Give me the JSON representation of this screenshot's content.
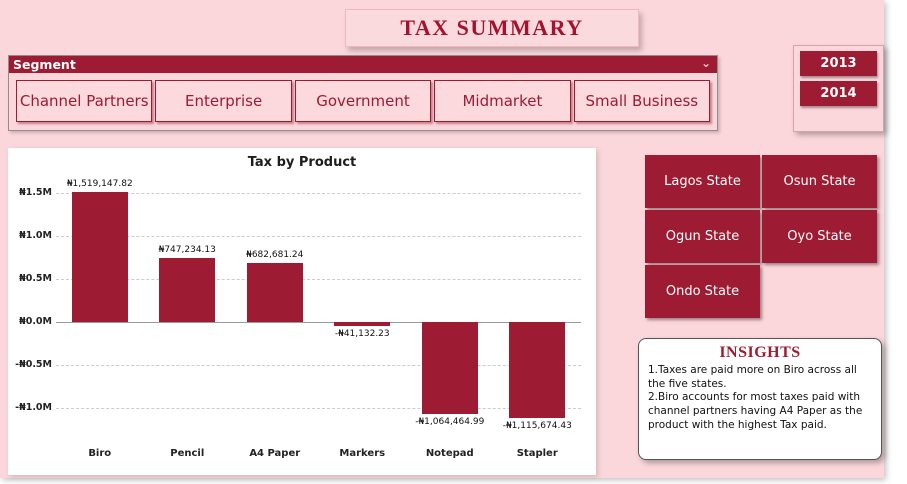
{
  "title": "TAX SUMMARY",
  "colors": {
    "accent": "#9D1B33",
    "page_bg": "#FBD7DB",
    "card_bg": "#FFFFFF",
    "title_color": "#A3122F"
  },
  "segment": {
    "label": "Segment",
    "chevron": "⌄",
    "options": [
      "Channel Partners",
      "Enterprise",
      "Government",
      "Midmarket",
      "Small Business"
    ]
  },
  "years": [
    "2013",
    "2014"
  ],
  "states": [
    "Lagos State",
    "Osun State",
    "Ogun State",
    "Oyo State",
    "Ondo State"
  ],
  "insights": {
    "title": "INSIGHTS",
    "lines": [
      "1.Taxes are paid more on Biro across all the five states.",
      "2.Biro accounts for most taxes paid with channel partners having A4 Paper as the product with the highest Tax paid."
    ]
  },
  "chart_data": {
    "type": "bar",
    "title": "Tax by Product",
    "categories": [
      "Biro",
      "Pencil",
      "A4 Paper",
      "Markers",
      "Notepad",
      "Stapler"
    ],
    "values": [
      1519147.82,
      747234.13,
      682681.24,
      -41132.23,
      -1064464.99,
      -1115674.43
    ],
    "data_labels": [
      "₦1,519,147.82",
      "₦747,234.13",
      "₦682,681.24",
      "-₦41,132.23",
      "-₦1,064,464.99",
      "-₦1,115,674.43"
    ],
    "y_ticks": [
      1500000,
      1000000,
      500000,
      0,
      -500000,
      -1000000
    ],
    "y_tick_labels": [
      "₦1.5M",
      "₦1.0M",
      "₦0.5M",
      "₦0.0M",
      "-₦0.5M",
      "-₦1.0M"
    ],
    "ylim": [
      -1300000,
      1630000
    ],
    "bar_color": "#9D1B33",
    "grid": true,
    "legend": "none"
  }
}
